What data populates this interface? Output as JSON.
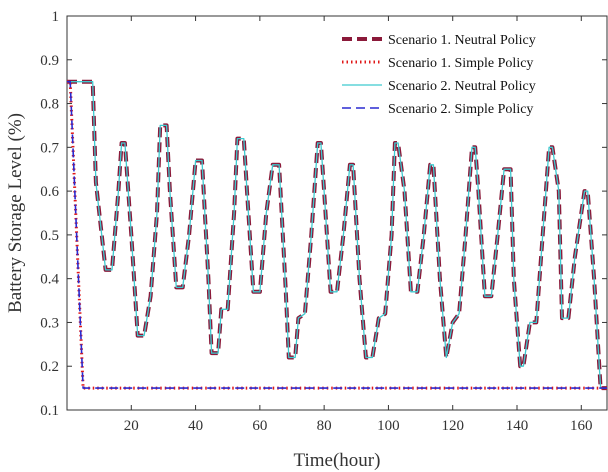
{
  "chart_data": {
    "type": "line",
    "xlabel": "Time(hour)",
    "ylabel": "Battery Storage Level (%)",
    "xlim": [
      0,
      168
    ],
    "ylim": [
      0.1,
      1
    ],
    "xticks": [
      20,
      40,
      60,
      80,
      100,
      120,
      140,
      160
    ],
    "yticks": [
      0.1,
      0.2,
      0.3,
      0.4,
      0.5,
      0.6,
      0.7,
      0.8,
      0.9,
      1
    ],
    "ytick_labels": [
      "0.1",
      "0.2",
      "0.3",
      "0.4",
      "0.5",
      "0.6",
      "0.7",
      "0.8",
      "0.9",
      "1"
    ],
    "grid": false,
    "legend_position": "top-right",
    "series": [
      {
        "name": "Scenario  1. Neutral Policy",
        "color": "#8b1a3a",
        "style": "dashed-thick",
        "x": [
          0,
          6,
          8,
          9,
          12,
          14,
          16,
          17,
          18,
          20,
          22,
          24,
          26,
          28,
          29,
          31,
          32,
          34,
          36,
          38,
          40,
          42,
          44,
          45,
          47,
          48,
          50,
          52,
          53,
          55,
          56,
          58,
          60,
          62,
          64,
          66,
          68,
          69,
          71,
          72,
          74,
          76,
          78,
          79,
          80,
          82,
          84,
          86,
          88,
          89,
          91,
          93,
          95,
          97,
          99,
          101,
          102,
          103,
          105,
          107,
          109,
          111,
          113,
          114,
          116,
          118,
          120,
          122,
          124,
          126,
          127,
          128,
          130,
          132,
          134,
          136,
          138,
          139,
          141,
          142,
          144,
          146,
          148,
          150,
          151,
          153,
          154,
          156,
          158,
          161,
          162,
          164,
          166,
          168
        ],
        "y": [
          0.85,
          0.85,
          0.85,
          0.62,
          0.42,
          0.42,
          0.6,
          0.71,
          0.71,
          0.5,
          0.27,
          0.27,
          0.36,
          0.55,
          0.75,
          0.75,
          0.6,
          0.38,
          0.38,
          0.5,
          0.67,
          0.67,
          0.4,
          0.23,
          0.23,
          0.33,
          0.33,
          0.55,
          0.72,
          0.72,
          0.6,
          0.37,
          0.37,
          0.55,
          0.66,
          0.66,
          0.38,
          0.22,
          0.22,
          0.31,
          0.32,
          0.5,
          0.71,
          0.71,
          0.6,
          0.37,
          0.37,
          0.5,
          0.66,
          0.66,
          0.4,
          0.22,
          0.22,
          0.31,
          0.32,
          0.5,
          0.71,
          0.71,
          0.6,
          0.37,
          0.37,
          0.5,
          0.66,
          0.66,
          0.4,
          0.22,
          0.3,
          0.32,
          0.5,
          0.7,
          0.7,
          0.6,
          0.36,
          0.36,
          0.5,
          0.65,
          0.65,
          0.4,
          0.2,
          0.2,
          0.3,
          0.3,
          0.5,
          0.7,
          0.7,
          0.6,
          0.31,
          0.31,
          0.45,
          0.6,
          0.6,
          0.4,
          0.15,
          0.15
        ]
      },
      {
        "name": "Scenario  1. Simple Policy",
        "color": "#e01818",
        "style": "dotted",
        "x": [
          0,
          1,
          5,
          168
        ],
        "y": [
          0.85,
          0.85,
          0.15,
          0.15
        ]
      },
      {
        "name": "Scenario  2. Neutral Policy",
        "color": "#3ec9cf",
        "style": "solid",
        "x": [
          0,
          6,
          8,
          9,
          12,
          14,
          16,
          17,
          18,
          20,
          22,
          24,
          26,
          28,
          29,
          31,
          32,
          34,
          36,
          38,
          40,
          42,
          44,
          45,
          47,
          48,
          50,
          52,
          53,
          55,
          56,
          58,
          60,
          62,
          64,
          66,
          68,
          69,
          71,
          72,
          74,
          76,
          78,
          79,
          80,
          82,
          84,
          86,
          88,
          89,
          91,
          93,
          95,
          97,
          99,
          101,
          102,
          103,
          105,
          107,
          109,
          111,
          113,
          114,
          116,
          118,
          120,
          122,
          124,
          126,
          127,
          128,
          130,
          132,
          134,
          136,
          138,
          139,
          141,
          142,
          144,
          146,
          148,
          150,
          151,
          153,
          154,
          156,
          158,
          161,
          162,
          164,
          166,
          168
        ],
        "y": [
          0.85,
          0.85,
          0.85,
          0.62,
          0.42,
          0.42,
          0.6,
          0.71,
          0.71,
          0.5,
          0.27,
          0.27,
          0.36,
          0.55,
          0.75,
          0.75,
          0.6,
          0.38,
          0.38,
          0.5,
          0.67,
          0.67,
          0.4,
          0.23,
          0.23,
          0.33,
          0.33,
          0.55,
          0.72,
          0.72,
          0.6,
          0.37,
          0.37,
          0.55,
          0.66,
          0.66,
          0.38,
          0.22,
          0.22,
          0.31,
          0.32,
          0.5,
          0.71,
          0.71,
          0.6,
          0.37,
          0.37,
          0.5,
          0.66,
          0.66,
          0.4,
          0.22,
          0.22,
          0.31,
          0.32,
          0.5,
          0.71,
          0.71,
          0.6,
          0.37,
          0.37,
          0.5,
          0.66,
          0.66,
          0.4,
          0.22,
          0.3,
          0.32,
          0.5,
          0.7,
          0.7,
          0.6,
          0.36,
          0.36,
          0.5,
          0.65,
          0.65,
          0.4,
          0.2,
          0.2,
          0.3,
          0.3,
          0.5,
          0.7,
          0.7,
          0.6,
          0.31,
          0.31,
          0.45,
          0.6,
          0.6,
          0.4,
          0.15,
          0.15
        ]
      },
      {
        "name": "Scenario  2. Simple Policy",
        "color": "#2a2ad0",
        "style": "dashed",
        "x": [
          0,
          1,
          5,
          168
        ],
        "y": [
          0.85,
          0.85,
          0.15,
          0.15
        ]
      }
    ]
  }
}
